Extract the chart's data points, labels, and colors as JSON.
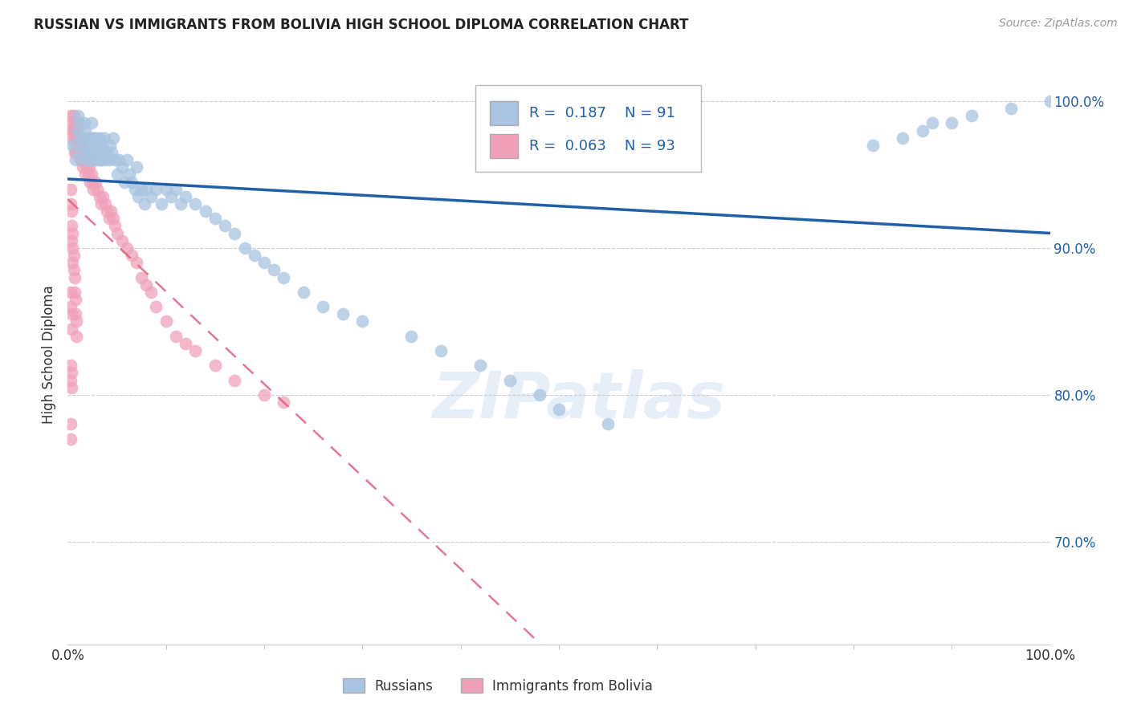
{
  "title": "RUSSIAN VS IMMIGRANTS FROM BOLIVIA HIGH SCHOOL DIPLOMA CORRELATION CHART",
  "source": "Source: ZipAtlas.com",
  "ylabel": "High School Diploma",
  "watermark": "ZIPatlas",
  "legend_blue_r": "0.187",
  "legend_blue_n": "91",
  "legend_pink_r": "0.063",
  "legend_pink_n": "93",
  "blue_color": "#a8c4e0",
  "blue_line_color": "#2060a8",
  "pink_color": "#f0a0b8",
  "pink_line_color": "#e06080",
  "grid_color": "#cccccc",
  "background_color": "#ffffff",
  "xlim": [
    0.0,
    1.0
  ],
  "ylim": [
    0.63,
    1.025
  ],
  "yticks": [
    0.7,
    0.8,
    0.9,
    1.0
  ],
  "ytick_labels": [
    "70.0%",
    "80.0%",
    "90.0%",
    "100.0%"
  ],
  "blue_x": [
    0.005,
    0.008,
    0.01,
    0.01,
    0.012,
    0.013,
    0.014,
    0.015,
    0.016,
    0.017,
    0.018,
    0.018,
    0.02,
    0.02,
    0.022,
    0.022,
    0.023,
    0.024,
    0.025,
    0.025,
    0.026,
    0.027,
    0.028,
    0.028,
    0.03,
    0.03,
    0.031,
    0.032,
    0.033,
    0.033,
    0.034,
    0.035,
    0.036,
    0.037,
    0.038,
    0.04,
    0.042,
    0.043,
    0.045,
    0.046,
    0.048,
    0.05,
    0.052,
    0.055,
    0.058,
    0.06,
    0.063,
    0.065,
    0.068,
    0.07,
    0.072,
    0.075,
    0.078,
    0.08,
    0.085,
    0.09,
    0.095,
    0.1,
    0.105,
    0.11,
    0.115,
    0.12,
    0.13,
    0.14,
    0.15,
    0.16,
    0.17,
    0.18,
    0.19,
    0.2,
    0.21,
    0.22,
    0.24,
    0.26,
    0.28,
    0.3,
    0.35,
    0.38,
    0.42,
    0.45,
    0.48,
    0.5,
    0.55,
    0.82,
    0.85,
    0.87,
    0.88,
    0.9,
    0.92,
    0.96,
    1.0
  ],
  "blue_y": [
    0.97,
    0.96,
    0.98,
    0.99,
    0.985,
    0.975,
    0.965,
    0.975,
    0.97,
    0.985,
    0.96,
    0.98,
    0.975,
    0.965,
    0.975,
    0.96,
    0.97,
    0.985,
    0.965,
    0.975,
    0.96,
    0.975,
    0.965,
    0.97,
    0.975,
    0.96,
    0.97,
    0.965,
    0.975,
    0.96,
    0.96,
    0.97,
    0.965,
    0.975,
    0.96,
    0.965,
    0.96,
    0.97,
    0.965,
    0.975,
    0.96,
    0.95,
    0.96,
    0.955,
    0.945,
    0.96,
    0.95,
    0.945,
    0.94,
    0.955,
    0.935,
    0.94,
    0.93,
    0.94,
    0.935,
    0.94,
    0.93,
    0.94,
    0.935,
    0.94,
    0.93,
    0.935,
    0.93,
    0.925,
    0.92,
    0.915,
    0.91,
    0.9,
    0.895,
    0.89,
    0.885,
    0.88,
    0.87,
    0.86,
    0.855,
    0.85,
    0.84,
    0.83,
    0.82,
    0.81,
    0.8,
    0.79,
    0.78,
    0.97,
    0.975,
    0.98,
    0.985,
    0.985,
    0.99,
    0.995,
    1.0
  ],
  "pink_x": [
    0.003,
    0.004,
    0.005,
    0.005,
    0.006,
    0.006,
    0.007,
    0.007,
    0.007,
    0.008,
    0.008,
    0.009,
    0.009,
    0.01,
    0.01,
    0.01,
    0.011,
    0.011,
    0.012,
    0.012,
    0.013,
    0.013,
    0.014,
    0.014,
    0.015,
    0.015,
    0.015,
    0.016,
    0.017,
    0.018,
    0.018,
    0.019,
    0.02,
    0.021,
    0.022,
    0.023,
    0.024,
    0.025,
    0.026,
    0.028,
    0.03,
    0.032,
    0.034,
    0.036,
    0.038,
    0.04,
    0.042,
    0.044,
    0.046,
    0.048,
    0.05,
    0.055,
    0.06,
    0.065,
    0.07,
    0.075,
    0.08,
    0.085,
    0.09,
    0.1,
    0.11,
    0.12,
    0.13,
    0.15,
    0.17,
    0.2,
    0.22,
    0.003,
    0.003,
    0.004,
    0.004,
    0.004,
    0.005,
    0.005,
    0.005,
    0.006,
    0.006,
    0.007,
    0.007,
    0.008,
    0.008,
    0.009,
    0.009,
    0.003,
    0.003,
    0.004,
    0.004,
    0.003,
    0.003,
    0.004,
    0.004,
    0.003,
    0.003
  ],
  "pink_y": [
    0.99,
    0.985,
    0.98,
    0.975,
    0.99,
    0.98,
    0.985,
    0.975,
    0.965,
    0.98,
    0.97,
    0.975,
    0.965,
    0.985,
    0.975,
    0.965,
    0.975,
    0.965,
    0.975,
    0.965,
    0.97,
    0.96,
    0.97,
    0.96,
    0.975,
    0.965,
    0.955,
    0.96,
    0.965,
    0.96,
    0.95,
    0.955,
    0.96,
    0.95,
    0.955,
    0.945,
    0.95,
    0.945,
    0.94,
    0.945,
    0.94,
    0.935,
    0.93,
    0.935,
    0.93,
    0.925,
    0.92,
    0.925,
    0.92,
    0.915,
    0.91,
    0.905,
    0.9,
    0.895,
    0.89,
    0.88,
    0.875,
    0.87,
    0.86,
    0.85,
    0.84,
    0.835,
    0.83,
    0.82,
    0.81,
    0.8,
    0.795,
    0.94,
    0.93,
    0.925,
    0.915,
    0.905,
    0.91,
    0.9,
    0.89,
    0.895,
    0.885,
    0.88,
    0.87,
    0.865,
    0.855,
    0.85,
    0.84,
    0.87,
    0.86,
    0.855,
    0.845,
    0.82,
    0.81,
    0.815,
    0.805,
    0.78,
    0.77
  ]
}
